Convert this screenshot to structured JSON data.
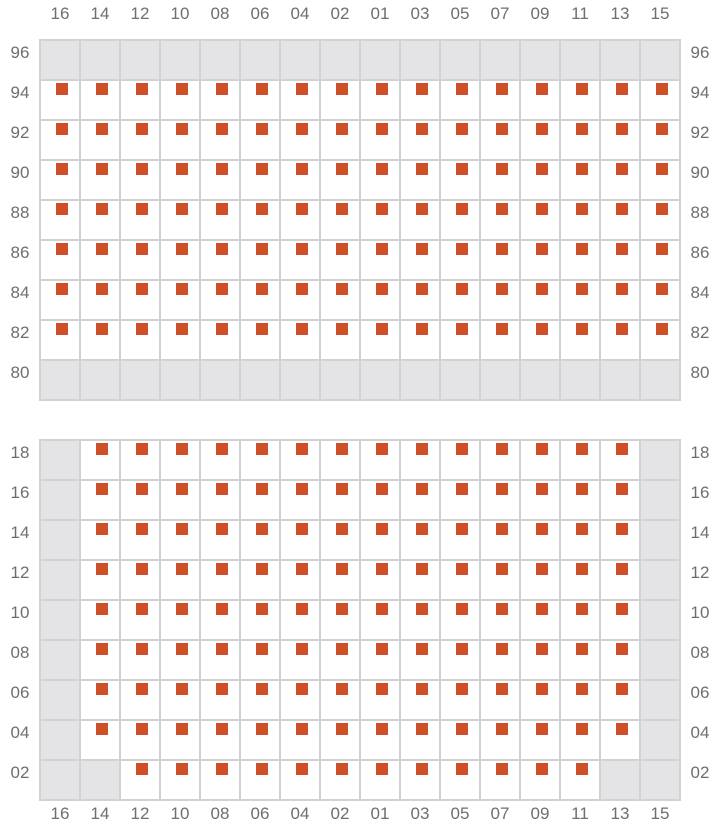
{
  "columns": [
    "16",
    "14",
    "12",
    "10",
    "08",
    "06",
    "04",
    "02",
    "01",
    "03",
    "05",
    "07",
    "09",
    "11",
    "13",
    "15"
  ],
  "cell_codes": {
    "X": "unavailable",
    "S": "seat",
    "O": "open"
  },
  "colors": {
    "seat": "#cf5028",
    "unavailable": "#e4e4e6",
    "grid_line": "#d2d2d4",
    "label": "#6e6e73"
  },
  "sections": [
    {
      "rows": [
        {
          "label": "96",
          "cells": "XXXXXXXXXXXXXXXX"
        },
        {
          "label": "94",
          "cells": "SSSSSSSSSSSSSSSS"
        },
        {
          "label": "92",
          "cells": "SSSSSSSSSSSSSSSS"
        },
        {
          "label": "90",
          "cells": "SSSSSSSSSSSSSSSS"
        },
        {
          "label": "88",
          "cells": "SSSSSSSSSSSSSSSS"
        },
        {
          "label": "86",
          "cells": "SSSSSSSSSSSSSSSS"
        },
        {
          "label": "84",
          "cells": "SSSSSSSSSSSSSSSS"
        },
        {
          "label": "82",
          "cells": "SSSSSSSSSSSSSSSS"
        },
        {
          "label": "80",
          "cells": "XXXXXXXXXXXXXXXX"
        }
      ]
    },
    {
      "rows": [
        {
          "label": "18",
          "cells": "XSSSSSSSSSSSSSSX"
        },
        {
          "label": "16",
          "cells": "XSSSSSSSSSSSSSSX"
        },
        {
          "label": "14",
          "cells": "XSSSSSSSSSSSSSSX"
        },
        {
          "label": "12",
          "cells": "XSSSSSSSSSSSSSSX"
        },
        {
          "label": "10",
          "cells": "XSSSSSSSSSSSSSSX"
        },
        {
          "label": "08",
          "cells": "XSSSSSSSSSSSSSSX"
        },
        {
          "label": "06",
          "cells": "XSSSSSSSSSSSSSSX"
        },
        {
          "label": "04",
          "cells": "XSSSSSSSSSSSSSSX"
        },
        {
          "label": "02",
          "cells": "XXSSSSSSSSSSSSXX"
        }
      ]
    }
  ]
}
